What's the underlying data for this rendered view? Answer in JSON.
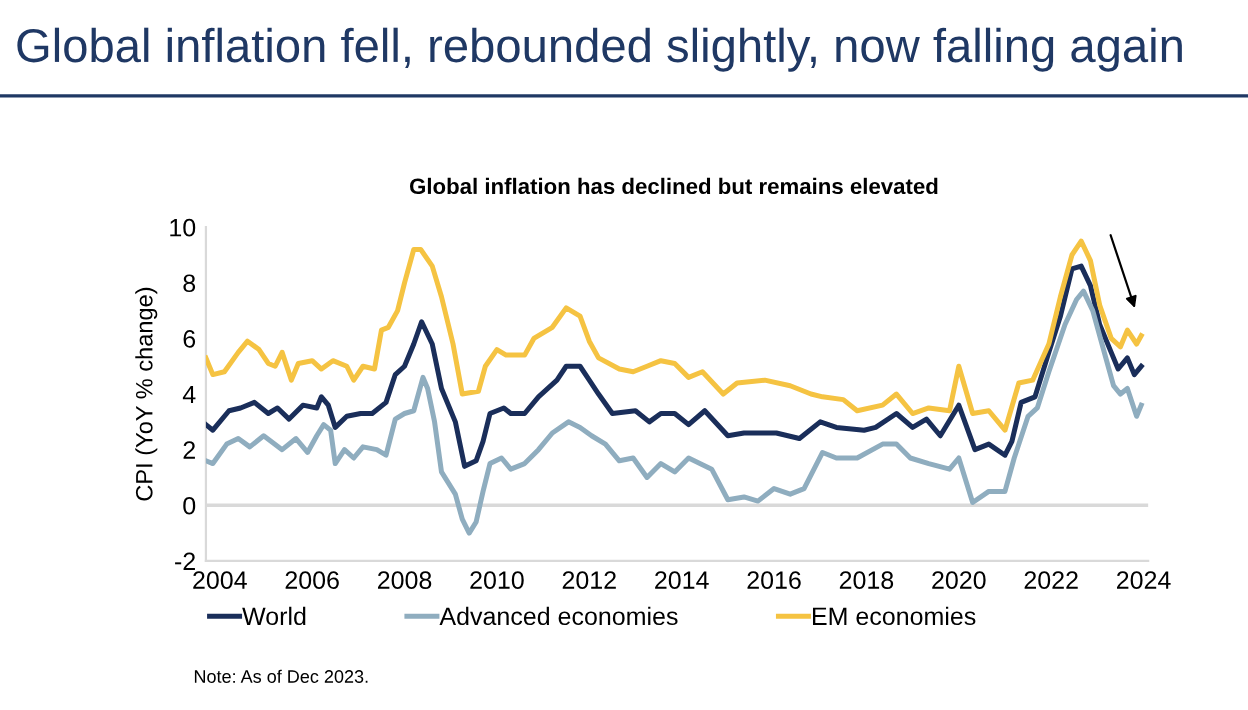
{
  "chart_data": {
    "type": "line",
    "title": "Global inflation fell, rebounded slightly, now falling again",
    "subtitle": "Global inflation has declined but remains elevated",
    "ylabel": "CPI (YoY % change)",
    "xlim": [
      2003.7,
      2024.1
    ],
    "xticks": [
      2004,
      2006,
      2008,
      2010,
      2012,
      2014,
      2016,
      2018,
      2020,
      2022,
      2024
    ],
    "ylim": [
      -2,
      10
    ],
    "yticks": [
      -2,
      0,
      2,
      4,
      6,
      8,
      10
    ],
    "grid": false,
    "legend": "bottom",
    "line_style": "solid",
    "marker": "none",
    "ref_lines": [
      {
        "axis": "y",
        "value": 0,
        "color": "#d9d9d9"
      }
    ],
    "annotations": [
      "Note: As of Dec 2023."
    ],
    "series": [
      {
        "name": "World",
        "color": "#1a2e5a",
        "x": [
          2003.7,
          2003.85,
          2004.2,
          2004.45,
          2004.75,
          2005.05,
          2005.25,
          2005.5,
          2005.8,
          2006.1,
          2006.2,
          2006.35,
          2006.5,
          2006.75,
          2007.05,
          2007.3,
          2007.6,
          2007.8,
          2008.0,
          2008.2,
          2008.37,
          2008.6,
          2008.8,
          2009.1,
          2009.3,
          2009.55,
          2009.7,
          2009.85,
          2010.15,
          2010.3,
          2010.6,
          2010.9,
          2011.3,
          2011.5,
          2011.8,
          2012.0,
          2012.2,
          2012.5,
          2013.0,
          2013.3,
          2013.55,
          2013.85,
          2014.15,
          2014.5,
          2015.0,
          2015.35,
          2016.05,
          2016.55,
          2017.0,
          2017.35,
          2017.95,
          2018.2,
          2018.65,
          2019.0,
          2019.3,
          2019.6,
          2020.0,
          2020.35,
          2020.65,
          2021.0,
          2021.15,
          2021.35,
          2021.65,
          2021.95,
          2022.2,
          2022.45,
          2022.65,
          2022.85,
          2023.05,
          2023.3,
          2023.45,
          2023.65,
          2023.8,
          2023.95
        ],
        "values": [
          2.9,
          2.7,
          3.4,
          3.5,
          3.7,
          3.3,
          3.5,
          3.1,
          3.6,
          3.5,
          3.9,
          3.6,
          2.8,
          3.2,
          3.3,
          3.3,
          3.7,
          4.7,
          5.0,
          5.8,
          6.6,
          5.8,
          4.2,
          3.0,
          1.4,
          1.6,
          2.3,
          3.3,
          3.5,
          3.3,
          3.3,
          3.9,
          4.5,
          5.0,
          5.0,
          4.5,
          4.0,
          3.3,
          3.4,
          3.0,
          3.3,
          3.3,
          2.9,
          3.4,
          2.5,
          2.6,
          2.6,
          2.4,
          3.0,
          2.8,
          2.7,
          2.8,
          3.3,
          2.8,
          3.1,
          2.5,
          3.6,
          2.0,
          2.2,
          1.8,
          2.3,
          3.7,
          3.9,
          5.5,
          6.8,
          8.5,
          8.6,
          7.9,
          6.5,
          5.5,
          4.9,
          5.3,
          4.7,
          5.0
        ]
      },
      {
        "name": "Advanced economies",
        "color": "#8fadbf",
        "x": [
          2003.7,
          2003.85,
          2004.15,
          2004.4,
          2004.65,
          2004.95,
          2005.35,
          2005.65,
          2005.9,
          2006.1,
          2006.25,
          2006.4,
          2006.5,
          2006.7,
          2006.9,
          2007.1,
          2007.4,
          2007.6,
          2007.8,
          2008.0,
          2008.2,
          2008.4,
          2008.5,
          2008.65,
          2008.8,
          2009.1,
          2009.25,
          2009.4,
          2009.55,
          2009.7,
          2009.85,
          2010.1,
          2010.3,
          2010.6,
          2010.9,
          2011.2,
          2011.55,
          2011.8,
          2012.05,
          2012.35,
          2012.65,
          2012.95,
          2013.25,
          2013.55,
          2013.85,
          2014.15,
          2014.65,
          2015.0,
          2015.35,
          2015.65,
          2016.0,
          2016.35,
          2016.65,
          2017.05,
          2017.35,
          2017.8,
          2018.35,
          2018.65,
          2018.95,
          2019.35,
          2019.8,
          2020.0,
          2020.3,
          2020.65,
          2021.0,
          2021.2,
          2021.5,
          2021.7,
          2021.95,
          2022.3,
          2022.55,
          2022.7,
          2022.9,
          2023.1,
          2023.35,
          2023.5,
          2023.65,
          2023.85,
          2023.95
        ],
        "values": [
          1.6,
          1.5,
          2.2,
          2.4,
          2.1,
          2.5,
          2.0,
          2.4,
          1.9,
          2.5,
          2.9,
          2.7,
          1.5,
          2.0,
          1.7,
          2.1,
          2.0,
          1.8,
          3.1,
          3.3,
          3.4,
          4.6,
          4.2,
          3.0,
          1.2,
          0.4,
          -0.5,
          -1.0,
          -0.6,
          0.5,
          1.5,
          1.7,
          1.3,
          1.5,
          2.0,
          2.6,
          3.0,
          2.8,
          2.5,
          2.2,
          1.6,
          1.7,
          1.0,
          1.5,
          1.2,
          1.7,
          1.3,
          0.2,
          0.3,
          0.15,
          0.6,
          0.4,
          0.6,
          1.9,
          1.7,
          1.7,
          2.2,
          2.2,
          1.7,
          1.5,
          1.3,
          1.7,
          0.1,
          0.5,
          0.5,
          1.7,
          3.2,
          3.5,
          4.8,
          6.5,
          7.4,
          7.7,
          7.0,
          5.8,
          4.3,
          4.0,
          4.2,
          3.2,
          3.6
        ]
      },
      {
        "name": "EM economies",
        "color": "#f5c342",
        "x": [
          2003.7,
          2003.85,
          2004.1,
          2004.4,
          2004.6,
          2004.85,
          2005.05,
          2005.2,
          2005.35,
          2005.55,
          2005.7,
          2006.0,
          2006.2,
          2006.45,
          2006.75,
          2006.9,
          2007.1,
          2007.35,
          2007.5,
          2007.65,
          2007.85,
          2008.0,
          2008.2,
          2008.35,
          2008.6,
          2008.8,
          2009.05,
          2009.25,
          2009.6,
          2009.75,
          2010.0,
          2010.2,
          2010.6,
          2010.8,
          2011.2,
          2011.5,
          2011.8,
          2012.0,
          2012.2,
          2012.65,
          2012.95,
          2013.25,
          2013.55,
          2013.85,
          2014.15,
          2014.45,
          2014.9,
          2015.2,
          2015.8,
          2016.35,
          2016.8,
          2017.05,
          2017.5,
          2017.8,
          2018.35,
          2018.65,
          2019.0,
          2019.35,
          2019.8,
          2020.0,
          2020.3,
          2020.65,
          2021.0,
          2021.3,
          2021.6,
          2021.95,
          2022.2,
          2022.45,
          2022.65,
          2022.85,
          2023.05,
          2023.3,
          2023.5,
          2023.65,
          2023.85,
          2023.95
        ],
        "values": [
          5.3,
          4.7,
          4.8,
          5.5,
          5.9,
          5.6,
          5.1,
          5.0,
          5.5,
          4.5,
          5.1,
          5.2,
          4.9,
          5.2,
          5.0,
          4.5,
          5.0,
          4.9,
          6.3,
          6.4,
          7.0,
          8.0,
          9.2,
          9.2,
          8.6,
          7.5,
          5.8,
          4.0,
          4.1,
          5.0,
          5.6,
          5.4,
          5.4,
          6.0,
          6.4,
          7.1,
          6.8,
          5.9,
          5.3,
          4.9,
          4.8,
          5.0,
          5.2,
          5.1,
          4.6,
          4.8,
          4.0,
          4.4,
          4.5,
          4.3,
          4.0,
          3.9,
          3.8,
          3.4,
          3.6,
          4.0,
          3.3,
          3.5,
          3.4,
          5.0,
          3.3,
          3.4,
          2.7,
          4.4,
          4.5,
          5.8,
          7.5,
          9.0,
          9.5,
          8.8,
          7.2,
          6.0,
          5.7,
          6.3,
          5.8,
          6.1
        ]
      }
    ]
  }
}
